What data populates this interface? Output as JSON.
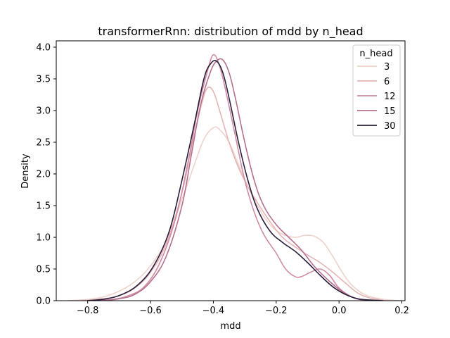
{
  "chart_data": {
    "type": "line",
    "title": "transformerRnn: distribution of mdd by n_head",
    "xlabel": "mdd",
    "ylabel": "Density",
    "xlim": [
      -0.9,
      0.21
    ],
    "ylim": [
      0,
      4.1
    ],
    "xticks": [
      -0.8,
      -0.6,
      -0.4,
      -0.2,
      0.0,
      0.2
    ],
    "xtick_labels": [
      "−0.8",
      "−0.6",
      "−0.4",
      "−0.2",
      "0.0",
      "0.2"
    ],
    "yticks": [
      0.0,
      0.5,
      1.0,
      1.5,
      2.0,
      2.5,
      3.0,
      3.5,
      4.0
    ],
    "ytick_labels": [
      "0.0",
      "0.5",
      "1.0",
      "1.5",
      "2.0",
      "2.5",
      "3.0",
      "3.5",
      "4.0"
    ],
    "grid": false,
    "legend": {
      "title": "n_head",
      "placement": "top-right"
    },
    "series": [
      {
        "name": "3",
        "color": "#efd2cc",
        "x": [
          -0.86,
          -0.8,
          -0.75,
          -0.7,
          -0.65,
          -0.6,
          -0.55,
          -0.5,
          -0.46,
          -0.43,
          -0.4,
          -0.38,
          -0.35,
          -0.32,
          -0.29,
          -0.26,
          -0.22,
          -0.18,
          -0.14,
          -0.11,
          -0.08,
          -0.05,
          -0.02,
          0.01,
          0.04,
          0.08,
          0.12,
          0.16,
          0.2
        ],
        "y": [
          0.0,
          0.02,
          0.06,
          0.15,
          0.3,
          0.55,
          0.95,
          1.6,
          2.15,
          2.55,
          2.73,
          2.7,
          2.5,
          2.15,
          1.8,
          1.5,
          1.2,
          1.05,
          1.0,
          1.03,
          1.02,
          0.92,
          0.7,
          0.45,
          0.25,
          0.1,
          0.04,
          0.01,
          0.0
        ]
      },
      {
        "name": "6",
        "color": "#e5b5b5",
        "x": [
          -0.82,
          -0.75,
          -0.7,
          -0.65,
          -0.6,
          -0.55,
          -0.5,
          -0.47,
          -0.44,
          -0.42,
          -0.4,
          -0.38,
          -0.35,
          -0.32,
          -0.29,
          -0.26,
          -0.22,
          -0.18,
          -0.14,
          -0.1,
          -0.06,
          -0.02,
          0.02,
          0.06,
          0.1,
          0.15
        ],
        "y": [
          0.0,
          0.03,
          0.08,
          0.2,
          0.45,
          0.9,
          1.7,
          2.4,
          3.05,
          3.35,
          3.3,
          3.0,
          2.5,
          2.1,
          1.8,
          1.55,
          1.25,
          1.0,
          0.85,
          0.72,
          0.6,
          0.45,
          0.28,
          0.12,
          0.04,
          0.0
        ]
      },
      {
        "name": "12",
        "color": "#d08ca3",
        "x": [
          -0.78,
          -0.72,
          -0.67,
          -0.62,
          -0.57,
          -0.52,
          -0.48,
          -0.45,
          -0.42,
          -0.4,
          -0.38,
          -0.36,
          -0.33,
          -0.3,
          -0.27,
          -0.24,
          -0.2,
          -0.17,
          -0.14,
          -0.12,
          -0.09,
          -0.06,
          -0.03,
          0.0,
          0.04,
          0.08
        ],
        "y": [
          0.0,
          0.02,
          0.08,
          0.22,
          0.6,
          1.3,
          2.2,
          3.0,
          3.6,
          3.88,
          3.7,
          3.3,
          2.6,
          1.9,
          1.4,
          1.05,
          0.75,
          0.5,
          0.38,
          0.38,
          0.45,
          0.5,
          0.4,
          0.2,
          0.06,
          0.0
        ]
      },
      {
        "name": "15",
        "color": "#b5708f",
        "x": [
          -0.76,
          -0.7,
          -0.65,
          -0.6,
          -0.55,
          -0.5,
          -0.47,
          -0.44,
          -0.41,
          -0.39,
          -0.37,
          -0.35,
          -0.33,
          -0.3,
          -0.27,
          -0.24,
          -0.2,
          -0.16,
          -0.12,
          -0.08,
          -0.04,
          0.0,
          0.04,
          0.08,
          0.12
        ],
        "y": [
          0.0,
          0.03,
          0.1,
          0.3,
          0.7,
          1.5,
          2.3,
          3.1,
          3.6,
          3.78,
          3.8,
          3.6,
          3.2,
          2.5,
          1.9,
          1.5,
          1.2,
          1.0,
          0.8,
          0.55,
          0.35,
          0.18,
          0.06,
          0.01,
          0.0
        ]
      },
      {
        "name": "30",
        "color": "#2c1e3d",
        "x": [
          -0.8,
          -0.74,
          -0.69,
          -0.64,
          -0.59,
          -0.54,
          -0.5,
          -0.46,
          -0.43,
          -0.41,
          -0.39,
          -0.37,
          -0.35,
          -0.32,
          -0.29,
          -0.26,
          -0.22,
          -0.18,
          -0.14,
          -0.1,
          -0.06,
          -0.02,
          0.02,
          0.06,
          0.1,
          0.14
        ],
        "y": [
          0.0,
          0.03,
          0.1,
          0.25,
          0.55,
          1.1,
          1.9,
          2.8,
          3.5,
          3.73,
          3.78,
          3.6,
          3.2,
          2.5,
          1.9,
          1.45,
          1.1,
          0.92,
          0.78,
          0.6,
          0.4,
          0.22,
          0.1,
          0.03,
          0.01,
          0.0
        ]
      }
    ]
  }
}
